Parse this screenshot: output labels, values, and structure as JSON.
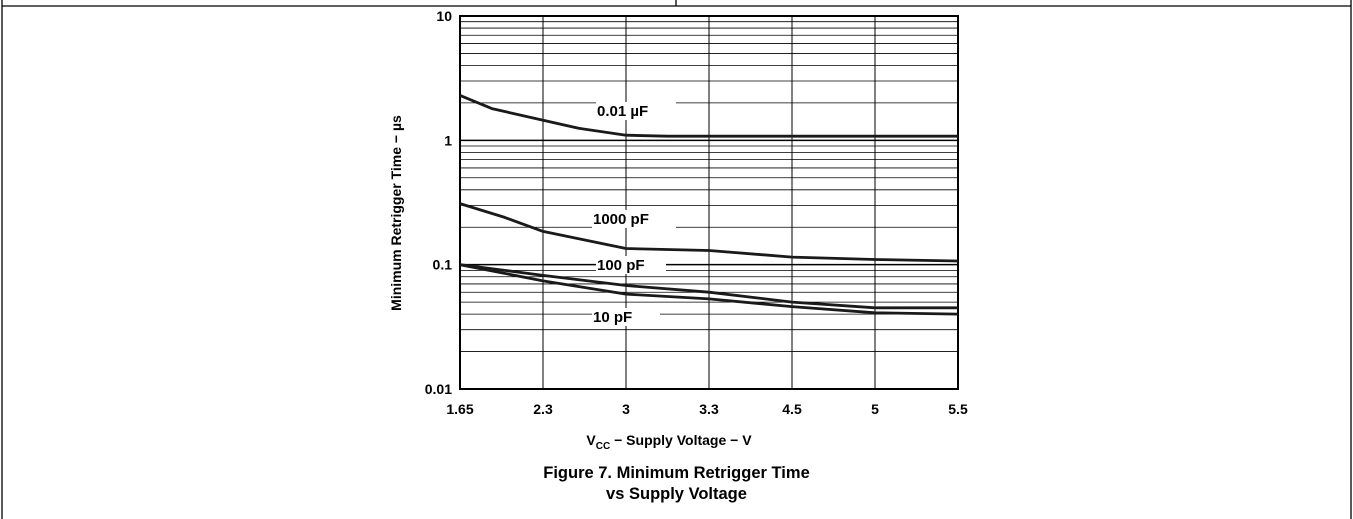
{
  "chart_data": {
    "type": "line",
    "xlabel_main": "V",
    "xlabel_sub": "CC",
    "xlabel_rest": " − Supply Voltage − V",
    "ylabel": "Minimum Retrigger Time − µs",
    "y_scale": "log",
    "ylim": [
      0.01,
      10
    ],
    "y_ticks": [
      "10",
      "1",
      "0.1",
      "0.01"
    ],
    "categories": [
      "1.65",
      "2.3",
      "3",
      "3.3",
      "4.5",
      "5",
      "5.5"
    ],
    "grid": true,
    "series": [
      {
        "name": "0.01 µF",
        "x": [
          1.65,
          1.9,
          2.6,
          3.0,
          3.15,
          5.5
        ],
        "y": [
          2.3,
          1.8,
          1.25,
          1.1,
          1.08,
          1.08
        ]
      },
      {
        "name": "1000 pF",
        "x": [
          1.65,
          2.0,
          2.3,
          3.0,
          3.3,
          4.5,
          5.0,
          5.5
        ],
        "y": [
          0.31,
          0.24,
          0.185,
          0.135,
          0.13,
          0.115,
          0.11,
          0.107
        ]
      },
      {
        "name": "100 pF",
        "x": [
          1.65,
          2.0,
          2.3,
          3.0,
          3.3,
          4.5,
          5.0,
          5.5
        ],
        "y": [
          0.1,
          0.09,
          0.082,
          0.068,
          0.06,
          0.05,
          0.045,
          0.045
        ]
      },
      {
        "name": "10 pF",
        "x": [
          1.65,
          2.0,
          2.3,
          3.0,
          3.3,
          4.5,
          5.0,
          5.5
        ],
        "y": [
          0.1,
          0.085,
          0.074,
          0.058,
          0.053,
          0.046,
          0.041,
          0.04
        ]
      }
    ]
  },
  "caption": {
    "line1": "Figure 7. Minimum Retrigger Time",
    "line2": "vs Supply Voltage"
  }
}
